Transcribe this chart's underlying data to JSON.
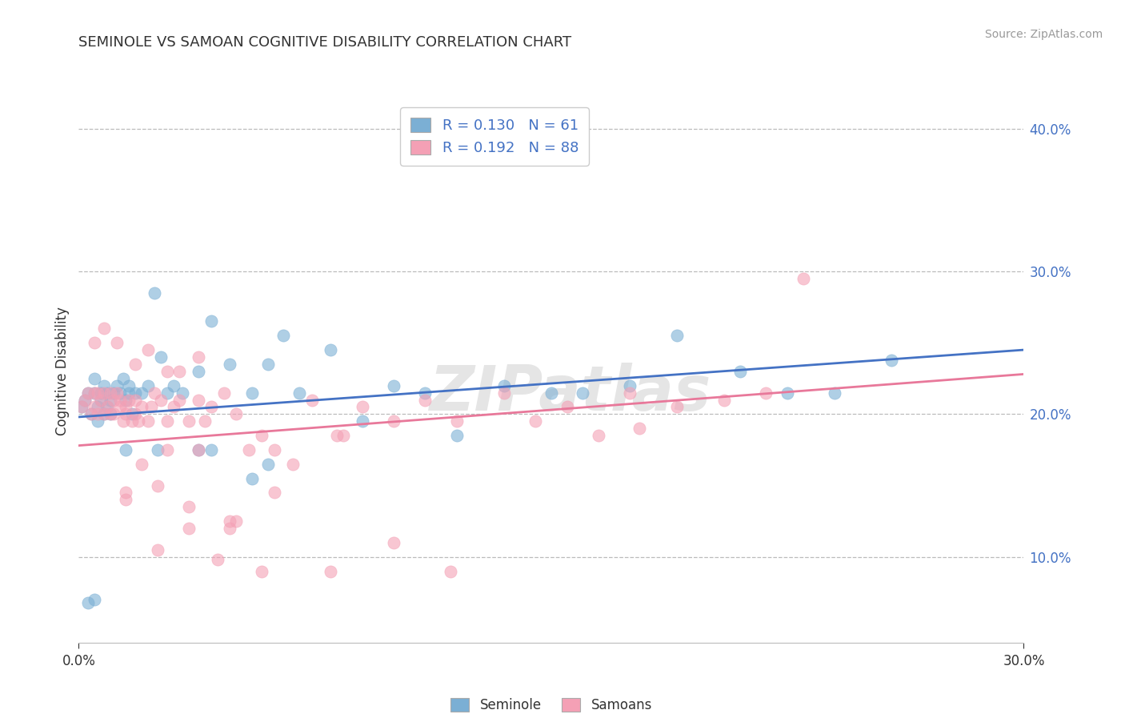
{
  "title": "SEMINOLE VS SAMOAN COGNITIVE DISABILITY CORRELATION CHART",
  "source": "Source: ZipAtlas.com",
  "ylabel_label": "Cognitive Disability",
  "xlim": [
    0.0,
    0.3
  ],
  "ylim": [
    0.04,
    0.42
  ],
  "y_ticks": [
    0.1,
    0.2,
    0.3,
    0.4
  ],
  "seminole_color": "#7BAFD4",
  "samoan_color": "#F4A0B5",
  "seminole_line_color": "#4472C4",
  "samoan_line_color": "#E8789A",
  "R_seminole": 0.13,
  "N_seminole": 61,
  "R_samoan": 0.192,
  "N_samoan": 88,
  "legend_label_1": "Seminole",
  "legend_label_2": "Samoans",
  "watermark": "ZIPatlas",
  "seminole_x": [
    0.001,
    0.002,
    0.003,
    0.004,
    0.005,
    0.005,
    0.006,
    0.006,
    0.007,
    0.007,
    0.008,
    0.008,
    0.009,
    0.009,
    0.01,
    0.01,
    0.011,
    0.012,
    0.013,
    0.014,
    0.015,
    0.016,
    0.016,
    0.017,
    0.018,
    0.02,
    0.022,
    0.024,
    0.026,
    0.028,
    0.03,
    0.033,
    0.038,
    0.042,
    0.048,
    0.055,
    0.06,
    0.065,
    0.07,
    0.08,
    0.09,
    0.1,
    0.11,
    0.12,
    0.135,
    0.15,
    0.16,
    0.175,
    0.19,
    0.21,
    0.225,
    0.24,
    0.258,
    0.06,
    0.025,
    0.038,
    0.015,
    0.042,
    0.055,
    0.003,
    0.005
  ],
  "seminole_y": [
    0.205,
    0.21,
    0.215,
    0.2,
    0.215,
    0.225,
    0.205,
    0.195,
    0.21,
    0.215,
    0.22,
    0.2,
    0.205,
    0.215,
    0.21,
    0.2,
    0.215,
    0.22,
    0.215,
    0.225,
    0.21,
    0.215,
    0.22,
    0.2,
    0.215,
    0.215,
    0.22,
    0.285,
    0.24,
    0.215,
    0.22,
    0.215,
    0.23,
    0.265,
    0.235,
    0.215,
    0.235,
    0.255,
    0.215,
    0.245,
    0.195,
    0.22,
    0.215,
    0.185,
    0.22,
    0.215,
    0.215,
    0.22,
    0.255,
    0.23,
    0.215,
    0.215,
    0.238,
    0.165,
    0.175,
    0.175,
    0.175,
    0.175,
    0.155,
    0.068,
    0.07
  ],
  "samoan_x": [
    0.001,
    0.002,
    0.003,
    0.004,
    0.005,
    0.005,
    0.006,
    0.006,
    0.007,
    0.008,
    0.008,
    0.009,
    0.01,
    0.01,
    0.011,
    0.011,
    0.012,
    0.013,
    0.013,
    0.014,
    0.015,
    0.015,
    0.016,
    0.017,
    0.018,
    0.018,
    0.019,
    0.02,
    0.022,
    0.023,
    0.024,
    0.026,
    0.028,
    0.03,
    0.032,
    0.035,
    0.038,
    0.04,
    0.042,
    0.046,
    0.05,
    0.054,
    0.058,
    0.062,
    0.068,
    0.074,
    0.082,
    0.09,
    0.1,
    0.11,
    0.12,
    0.135,
    0.145,
    0.155,
    0.165,
    0.175,
    0.19,
    0.205,
    0.218,
    0.23,
    0.005,
    0.008,
    0.012,
    0.018,
    0.022,
    0.028,
    0.032,
    0.038,
    0.048,
    0.058,
    0.08,
    0.1,
    0.118,
    0.05,
    0.035,
    0.044,
    0.028,
    0.02,
    0.025,
    0.062,
    0.178,
    0.084,
    0.038,
    0.015,
    0.025,
    0.035,
    0.048,
    0.015
  ],
  "samoan_y": [
    0.205,
    0.21,
    0.215,
    0.2,
    0.215,
    0.205,
    0.2,
    0.215,
    0.21,
    0.2,
    0.215,
    0.205,
    0.2,
    0.215,
    0.21,
    0.2,
    0.215,
    0.205,
    0.21,
    0.195,
    0.2,
    0.205,
    0.21,
    0.195,
    0.2,
    0.21,
    0.195,
    0.205,
    0.195,
    0.205,
    0.215,
    0.21,
    0.195,
    0.205,
    0.21,
    0.195,
    0.21,
    0.195,
    0.205,
    0.215,
    0.2,
    0.175,
    0.185,
    0.175,
    0.165,
    0.21,
    0.185,
    0.205,
    0.195,
    0.21,
    0.195,
    0.215,
    0.195,
    0.205,
    0.185,
    0.215,
    0.205,
    0.21,
    0.215,
    0.295,
    0.25,
    0.26,
    0.25,
    0.235,
    0.245,
    0.23,
    0.23,
    0.24,
    0.12,
    0.09,
    0.09,
    0.11,
    0.09,
    0.125,
    0.135,
    0.098,
    0.175,
    0.165,
    0.15,
    0.145,
    0.19,
    0.185,
    0.175,
    0.14,
    0.105,
    0.12,
    0.125,
    0.145
  ]
}
